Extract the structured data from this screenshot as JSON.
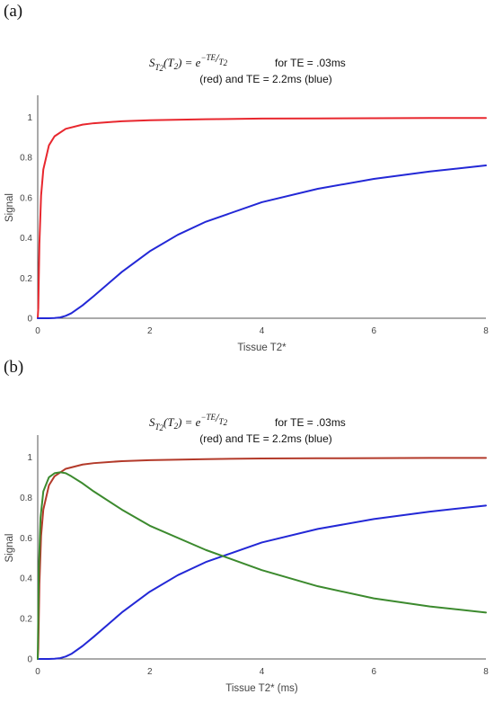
{
  "panels": [
    {
      "label": "(a)",
      "chart_data": {
        "type": "line",
        "title_formula": "S_{T2}(T2) = e^{-TE/T2}",
        "title_line1": "for TE = .03ms",
        "title_line2": "(red) and TE = 2.2ms (blue)",
        "xlabel": "Tissue T2*",
        "ylabel": "Signal",
        "xlim": [
          0,
          8
        ],
        "ylim": [
          0,
          1.1
        ],
        "xticks": [
          0,
          2,
          4,
          6,
          8
        ],
        "yticks": [
          0,
          0.2,
          0.4,
          0.6,
          0.8,
          1
        ],
        "ytick_labels": [
          "0",
          "0.2",
          "0.4",
          "0.6",
          "0.8",
          "1"
        ],
        "series": [
          {
            "name": "TE = .03ms",
            "color": "#e8272e",
            "x": [
              0,
              0.01,
              0.03,
              0.06,
              0.1,
              0.2,
              0.3,
              0.5,
              0.8,
              1,
              1.5,
              2,
              3,
              4,
              5,
              6,
              7,
              8
            ],
            "y": [
              0,
              0.05,
              0.37,
              0.61,
              0.74,
              0.86,
              0.905,
              0.942,
              0.963,
              0.97,
              0.98,
              0.985,
              0.99,
              0.993,
              0.994,
              0.995,
              0.996,
              0.996
            ]
          },
          {
            "name": "TE = 2.2ms",
            "color": "#2328d6",
            "x": [
              0,
              0.2,
              0.3,
              0.4,
              0.5,
              0.6,
              0.8,
              1,
              1.5,
              2,
              2.5,
              3,
              4,
              5,
              6,
              7,
              8
            ],
            "y": [
              0,
              0,
              0.001,
              0.004,
              0.012,
              0.025,
              0.064,
              0.11,
              0.23,
              0.333,
              0.415,
              0.48,
              0.577,
              0.644,
              0.693,
              0.73,
              0.76
            ]
          }
        ],
        "grid": false
      }
    },
    {
      "label": "(b)",
      "chart_data": {
        "type": "line",
        "title_formula": "S_{T2}(T2) = e^{-TE/T2}",
        "title_line1": "for TE = .03ms",
        "title_line2": "(red) and TE = 2.2ms (blue)",
        "xlabel": "Tissue T2* (ms)",
        "ylabel": "Signal",
        "xlim": [
          0,
          8
        ],
        "ylim": [
          0,
          1.1
        ],
        "xticks": [
          0,
          2,
          4,
          6,
          8
        ],
        "yticks": [
          0,
          0.2,
          0.4,
          0.6,
          0.8,
          1
        ],
        "ytick_labels": [
          "0",
          "0.2",
          "0.4",
          "0.6",
          "0.8",
          "1"
        ],
        "series": [
          {
            "name": "TE = .03ms",
            "color": "#b33a2a",
            "x": [
              0,
              0.01,
              0.03,
              0.06,
              0.1,
              0.2,
              0.3,
              0.5,
              0.8,
              1,
              1.5,
              2,
              3,
              4,
              5,
              6,
              7,
              8
            ],
            "y": [
              0,
              0.05,
              0.37,
              0.61,
              0.74,
              0.86,
              0.905,
              0.942,
              0.963,
              0.97,
              0.98,
              0.985,
              0.99,
              0.993,
              0.994,
              0.995,
              0.996,
              0.996
            ]
          },
          {
            "name": "TE = 2.2ms",
            "color": "#2328d6",
            "x": [
              0,
              0.2,
              0.3,
              0.4,
              0.5,
              0.6,
              0.8,
              1,
              1.5,
              2,
              2.5,
              3,
              4,
              5,
              6,
              7,
              8
            ],
            "y": [
              0,
              0,
              0.001,
              0.004,
              0.012,
              0.025,
              0.064,
              0.11,
              0.23,
              0.333,
              0.415,
              0.48,
              0.577,
              0.644,
              0.693,
              0.73,
              0.76
            ]
          },
          {
            "name": "",
            "color": "#3c8a2e",
            "x": [
              0,
              0.02,
              0.05,
              0.1,
              0.2,
              0.3,
              0.4,
              0.5,
              0.6,
              0.8,
              1,
              1.5,
              2,
              3,
              4,
              5,
              6,
              7,
              8
            ],
            "y": [
              0,
              0.45,
              0.7,
              0.83,
              0.9,
              0.92,
              0.925,
              0.92,
              0.905,
              0.87,
              0.83,
              0.74,
              0.66,
              0.54,
              0.44,
              0.36,
              0.3,
              0.26,
              0.23
            ]
          }
        ],
        "grid": false
      }
    }
  ]
}
